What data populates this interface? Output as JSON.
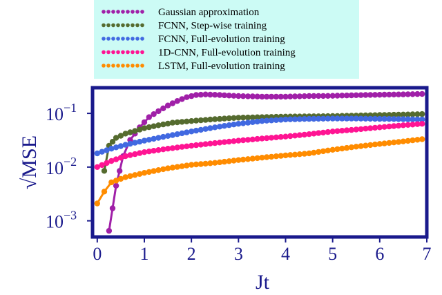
{
  "chart_data": {
    "type": "line",
    "title": "",
    "xlabel": "Jt",
    "ylabel": "√MSE",
    "xlim": [
      -0.1,
      7.0
    ],
    "ylim": [
      0.0005,
      0.3
    ],
    "yscale": "log",
    "grid": false,
    "legend_position": "top",
    "x_ticks": [
      0,
      1,
      2,
      3,
      4,
      5,
      6,
      7
    ],
    "x_tick_labels": [
      "0",
      "1",
      "2",
      "3",
      "4",
      "5",
      "6",
      "7"
    ],
    "y_ticks": [
      0.001,
      0.01,
      0.1
    ],
    "y_tick_labels": [
      {
        "base": "10",
        "exp": "−3"
      },
      {
        "base": "10",
        "exp": "−2"
      },
      {
        "base": "10",
        "exp": "−1"
      }
    ],
    "colors": {
      "frame": "#1a1a8c",
      "legend_background": "#ccfbf5",
      "text_axes": "#1a1a8c"
    },
    "series": [
      {
        "name": "Gaussian approximation",
        "color": "#a020a8",
        "points": [
          [
            0.25,
            0.00065
          ],
          [
            0.4,
            0.0045
          ],
          [
            0.55,
            0.016
          ],
          [
            0.7,
            0.032
          ],
          [
            0.9,
            0.055
          ],
          [
            1.1,
            0.085
          ],
          [
            1.3,
            0.11
          ],
          [
            1.5,
            0.14
          ],
          [
            1.7,
            0.17
          ],
          [
            1.9,
            0.2
          ],
          [
            2.1,
            0.22
          ],
          [
            2.3,
            0.225
          ],
          [
            2.6,
            0.22
          ],
          [
            3.0,
            0.21
          ],
          [
            3.5,
            0.205
          ],
          [
            4.0,
            0.205
          ],
          [
            4.5,
            0.21
          ],
          [
            5.0,
            0.212
          ],
          [
            5.5,
            0.218
          ],
          [
            6.0,
            0.222
          ],
          [
            6.5,
            0.226
          ],
          [
            6.9,
            0.23
          ]
        ]
      },
      {
        "name": "FCNN, Step-wise training",
        "color": "#556b2f",
        "points": [
          [
            0.15,
            0.0085
          ],
          [
            0.25,
            0.025
          ],
          [
            0.4,
            0.035
          ],
          [
            0.6,
            0.042
          ],
          [
            0.8,
            0.047
          ],
          [
            1.0,
            0.053
          ],
          [
            1.3,
            0.06
          ],
          [
            1.6,
            0.067
          ],
          [
            2.0,
            0.072
          ],
          [
            2.5,
            0.078
          ],
          [
            3.0,
            0.083
          ],
          [
            3.5,
            0.085
          ],
          [
            4.0,
            0.087
          ],
          [
            4.5,
            0.088
          ],
          [
            5.0,
            0.089
          ],
          [
            5.5,
            0.091
          ],
          [
            6.0,
            0.093
          ],
          [
            6.5,
            0.095
          ],
          [
            6.9,
            0.097
          ]
        ]
      },
      {
        "name": "FCNN, Full-evolution training",
        "color": "#4169e1",
        "points": [
          [
            0.0,
            0.018
          ],
          [
            0.3,
            0.022
          ],
          [
            0.6,
            0.026
          ],
          [
            1.0,
            0.031
          ],
          [
            1.5,
            0.038
          ],
          [
            2.0,
            0.046
          ],
          [
            2.5,
            0.055
          ],
          [
            3.0,
            0.064
          ],
          [
            3.5,
            0.072
          ],
          [
            4.0,
            0.077
          ],
          [
            4.5,
            0.079
          ],
          [
            5.0,
            0.08
          ],
          [
            5.5,
            0.08
          ],
          [
            6.0,
            0.079
          ],
          [
            6.5,
            0.078
          ],
          [
            6.9,
            0.077
          ]
        ]
      },
      {
        "name": "1D-CNN, Full-evolution training",
        "color": "#ff1493",
        "points": [
          [
            0.0,
            0.01
          ],
          [
            0.3,
            0.013
          ],
          [
            0.6,
            0.016
          ],
          [
            1.0,
            0.019
          ],
          [
            1.5,
            0.022
          ],
          [
            2.0,
            0.025
          ],
          [
            2.5,
            0.028
          ],
          [
            3.0,
            0.031
          ],
          [
            3.5,
            0.034
          ],
          [
            4.0,
            0.037
          ],
          [
            4.5,
            0.041
          ],
          [
            5.0,
            0.046
          ],
          [
            5.5,
            0.05
          ],
          [
            6.0,
            0.055
          ],
          [
            6.5,
            0.06
          ],
          [
            6.9,
            0.064
          ]
        ]
      },
      {
        "name": "LSTM, Full-evolution training",
        "color": "#ff8c00",
        "points": [
          [
            0.0,
            0.0021
          ],
          [
            0.15,
            0.0035
          ],
          [
            0.3,
            0.0052
          ],
          [
            0.6,
            0.0065
          ],
          [
            1.0,
            0.0078
          ],
          [
            1.5,
            0.0095
          ],
          [
            2.0,
            0.011
          ],
          [
            2.5,
            0.012
          ],
          [
            3.0,
            0.0135
          ],
          [
            3.5,
            0.015
          ],
          [
            4.0,
            0.0165
          ],
          [
            4.5,
            0.018
          ],
          [
            5.0,
            0.021
          ],
          [
            5.5,
            0.024
          ],
          [
            6.0,
            0.027
          ],
          [
            6.5,
            0.03
          ],
          [
            6.9,
            0.033
          ]
        ]
      }
    ]
  }
}
